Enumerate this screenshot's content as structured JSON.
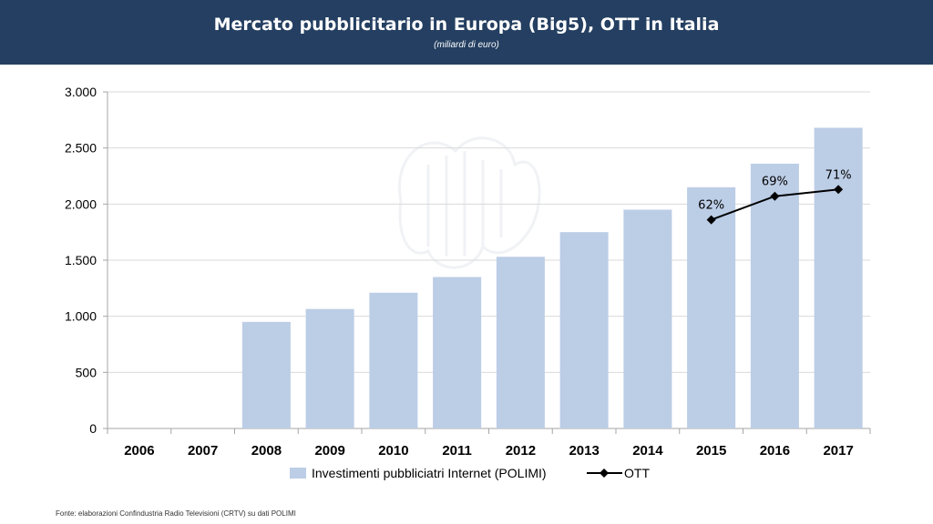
{
  "header": {
    "title": "Mercato pubblicitario in Europa (Big5), OTT in Italia",
    "subtitle": "(miliardi di euro)"
  },
  "source": "Fonte: elaborazioni Confindustria Radio Televisioni (CRTV) su dati POLIMI",
  "colors": {
    "header_bg": "#243f61",
    "bar": "#bccde6",
    "line": "#000000",
    "grid": "#d9d9d9"
  },
  "chart_data": {
    "type": "bar",
    "categories": [
      "2006",
      "2007",
      "2008",
      "2009",
      "2010",
      "2011",
      "2012",
      "2013",
      "2014",
      "2015",
      "2016",
      "2017"
    ],
    "ylim": [
      0,
      3000
    ],
    "yticks": [
      0,
      500,
      1000,
      1500,
      2000,
      2500,
      3000
    ],
    "ytick_labels": [
      "0",
      "500",
      "1.000",
      "1.500",
      "2.000",
      "2.500",
      "3.000"
    ],
    "grid": true,
    "legend_position": "bottom",
    "series": [
      {
        "name": "Investimenti pubbliciatri Internet (POLIMI)",
        "type": "bar",
        "values": [
          null,
          null,
          950,
          1065,
          1210,
          1350,
          1530,
          1750,
          1950,
          2150,
          2360,
          2680
        ]
      },
      {
        "name": "OTT",
        "type": "line",
        "values": [
          null,
          null,
          null,
          null,
          null,
          null,
          null,
          null,
          null,
          1860,
          2070,
          2130
        ],
        "labels": [
          null,
          null,
          null,
          null,
          null,
          null,
          null,
          null,
          null,
          "62%",
          "69%",
          "71%"
        ]
      }
    ]
  }
}
